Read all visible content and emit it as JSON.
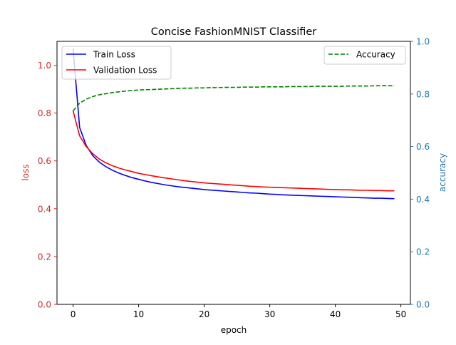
{
  "chart_data": {
    "type": "line",
    "title": "Concise FashionMNIST Classifier",
    "xlabel": "epoch",
    "ylabel_left": "loss",
    "ylabel_right": "accuracy",
    "xlim": [
      -2.45,
      51.45
    ],
    "ylim_left": [
      0.0,
      1.1
    ],
    "ylim_right": [
      0.0,
      1.0
    ],
    "xticks": [
      "0",
      "10",
      "20",
      "30",
      "40",
      "50"
    ],
    "yticks_left": [
      "0.0",
      "0.2",
      "0.4",
      "0.6",
      "0.8",
      "1.0"
    ],
    "yticks_right": [
      "0.0",
      "0.2",
      "0.4",
      "0.6",
      "0.8",
      "1.0"
    ],
    "left_axis_color": "#d62728",
    "right_axis_color": "#1f77b4",
    "legend_left_placement": "upper-left",
    "legend_right_placement": "upper-right",
    "grid": false,
    "epochs": [
      0,
      1,
      2,
      3,
      4,
      5,
      6,
      7,
      8,
      9,
      10,
      11,
      12,
      13,
      14,
      15,
      16,
      17,
      18,
      19,
      20,
      21,
      22,
      23,
      24,
      25,
      26,
      27,
      28,
      29,
      30,
      31,
      32,
      33,
      34,
      35,
      36,
      37,
      38,
      39,
      40,
      41,
      42,
      43,
      44,
      45,
      46,
      47,
      48,
      49
    ],
    "series": [
      {
        "name": "Train Loss",
        "axis": "left",
        "color": "#0000ff",
        "style": "solid",
        "values": [
          1.07,
          0.74,
          0.665,
          0.622,
          0.595,
          0.576,
          0.561,
          0.549,
          0.539,
          0.53,
          0.523,
          0.516,
          0.51,
          0.505,
          0.5,
          0.496,
          0.492,
          0.489,
          0.486,
          0.483,
          0.48,
          0.478,
          0.476,
          0.474,
          0.472,
          0.47,
          0.468,
          0.466,
          0.465,
          0.463,
          0.461,
          0.46,
          0.458,
          0.457,
          0.456,
          0.455,
          0.454,
          0.453,
          0.452,
          0.451,
          0.45,
          0.449,
          0.448,
          0.447,
          0.446,
          0.445,
          0.444,
          0.444,
          0.443,
          0.442
        ]
      },
      {
        "name": "Validation Loss",
        "axis": "left",
        "color": "#ff0000",
        "style": "solid",
        "values": [
          0.81,
          0.705,
          0.66,
          0.63,
          0.608,
          0.592,
          0.58,
          0.57,
          0.562,
          0.555,
          0.548,
          0.543,
          0.538,
          0.533,
          0.529,
          0.525,
          0.521,
          0.517,
          0.514,
          0.511,
          0.508,
          0.506,
          0.504,
          0.502,
          0.5,
          0.498,
          0.496,
          0.494,
          0.493,
          0.491,
          0.49,
          0.489,
          0.488,
          0.487,
          0.486,
          0.485,
          0.484,
          0.483,
          0.482,
          0.481,
          0.48,
          0.479,
          0.479,
          0.478,
          0.477,
          0.477,
          0.476,
          0.476,
          0.475,
          0.475
        ]
      },
      {
        "name": "Accuracy",
        "axis": "right",
        "color": "#008000",
        "style": "dashed",
        "values": [
          0.735,
          0.765,
          0.78,
          0.79,
          0.797,
          0.801,
          0.805,
          0.808,
          0.811,
          0.813,
          0.815,
          0.816,
          0.817,
          0.818,
          0.819,
          0.82,
          0.821,
          0.822,
          0.822,
          0.823,
          0.823,
          0.824,
          0.824,
          0.825,
          0.825,
          0.825,
          0.826,
          0.826,
          0.826,
          0.827,
          0.827,
          0.827,
          0.827,
          0.828,
          0.828,
          0.828,
          0.828,
          0.829,
          0.829,
          0.829,
          0.829,
          0.829,
          0.83,
          0.83,
          0.83,
          0.83,
          0.831,
          0.831,
          0.831,
          0.831
        ]
      }
    ]
  }
}
